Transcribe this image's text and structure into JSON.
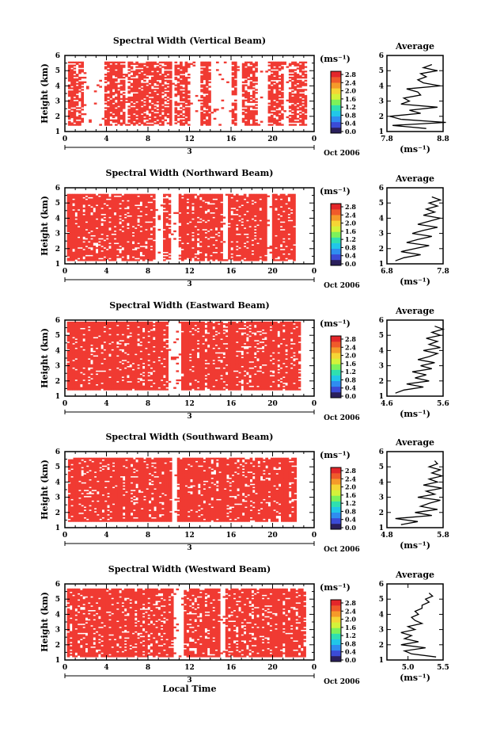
{
  "colors": {
    "data_red": "#f03a32",
    "colorbar": [
      "#2a1f5c",
      "#3b4bd6",
      "#2f8df0",
      "#21c7e8",
      "#2fe0b0",
      "#7cf25a",
      "#d4f23a",
      "#f5d535",
      "#f59a2a",
      "#f05a2a",
      "#e3262a"
    ]
  },
  "chart_data": [
    {
      "type": "heatmap",
      "title": "Spectral Width (Vertical Beam)",
      "xlabel": "",
      "ylabel": "Height (km)",
      "x_ticks": [
        "0",
        "4",
        "8",
        "12",
        "16",
        "20",
        "0"
      ],
      "x_sub_label": "3",
      "date_label": "Oct 2006",
      "xlim": [
        0,
        24
      ],
      "ylim": [
        1,
        6
      ],
      "y_ticks": [
        "1",
        "2",
        "3",
        "4",
        "5",
        "6"
      ],
      "data_range_hours": [
        0.3,
        23.2
      ],
      "data_height_range": [
        1.4,
        5.5
      ],
      "gaps_hours": [
        [
          1.7,
          3.8
        ],
        [
          5.6,
          6.0
        ],
        [
          10.2,
          10.5
        ],
        [
          12.0,
          13.0
        ],
        [
          14.0,
          16.0
        ],
        [
          16.5,
          17.0
        ],
        [
          18.5,
          19.5
        ],
        [
          21.0,
          21.5
        ]
      ],
      "fill_density": 0.72,
      "colorbar": {
        "unit": "(ms⁻¹)",
        "ticks": [
          "0.0",
          "0.4",
          "0.8",
          "1.2",
          "1.6",
          "2.0",
          "2.4",
          "2.8"
        ]
      },
      "average": {
        "title": "Average",
        "xlabel": "(ms⁻¹)",
        "x_ticks": [
          "7.8",
          "8.8"
        ],
        "xlim": [
          7.8,
          8.8
        ],
        "heights": [
          1.2,
          1.4,
          1.6,
          1.8,
          2.0,
          2.2,
          2.4,
          2.6,
          2.8,
          3.0,
          3.2,
          3.4,
          3.6,
          3.8,
          4.0,
          4.2,
          4.4,
          4.6,
          4.8,
          5.0,
          5.2,
          5.4
        ],
        "values": [
          8.5,
          7.9,
          8.85,
          8.05,
          7.85,
          8.4,
          8.2,
          8.7,
          8.05,
          8.2,
          8.1,
          8.4,
          8.35,
          8.15,
          8.75,
          8.45,
          8.35,
          8.5,
          8.4,
          8.7,
          8.45,
          8.6
        ]
      }
    },
    {
      "type": "heatmap",
      "title": "Spectral Width (Northward Beam)",
      "xlabel": "",
      "ylabel": "Height (km)",
      "x_ticks": [
        "0",
        "4",
        "8",
        "12",
        "16",
        "20",
        "0"
      ],
      "x_sub_label": "3",
      "date_label": "Oct 2006",
      "xlim": [
        0,
        24
      ],
      "ylim": [
        1,
        6
      ],
      "y_ticks": [
        "1",
        "2",
        "3",
        "4",
        "5",
        "6"
      ],
      "data_range_hours": [
        0.2,
        22.0
      ],
      "data_height_range": [
        1.2,
        5.5
      ],
      "gaps_hours": [
        [
          8.7,
          9.3
        ],
        [
          10.1,
          10.8
        ],
        [
          15.2,
          15.7
        ],
        [
          19.4,
          19.9
        ]
      ],
      "fill_density": 0.86,
      "colorbar": {
        "unit": "(ms⁻¹)",
        "ticks": [
          "0.0",
          "0.4",
          "0.8",
          "1.2",
          "1.6",
          "2.0",
          "2.4",
          "2.8"
        ]
      },
      "average": {
        "title": "Average",
        "xlabel": "(ms⁻¹)",
        "x_ticks": [
          "6.8",
          "7.8"
        ],
        "xlim": [
          6.8,
          7.8
        ],
        "heights": [
          1.2,
          1.4,
          1.6,
          1.8,
          2.0,
          2.2,
          2.4,
          2.6,
          2.8,
          3.0,
          3.2,
          3.4,
          3.6,
          3.8,
          4.0,
          4.2,
          4.4,
          4.6,
          4.8,
          5.0,
          5.2,
          5.4
        ],
        "values": [
          6.95,
          7.1,
          7.4,
          7.05,
          7.3,
          7.55,
          7.15,
          7.35,
          7.6,
          7.25,
          7.45,
          7.7,
          7.35,
          7.55,
          7.75,
          7.45,
          7.65,
          7.5,
          7.7,
          7.55,
          7.75,
          7.6
        ]
      }
    },
    {
      "type": "heatmap",
      "title": "Spectral Width (Eastward Beam)",
      "xlabel": "",
      "ylabel": "Height (km)",
      "x_ticks": [
        "0",
        "4",
        "8",
        "12",
        "16",
        "20",
        "0"
      ],
      "x_sub_label": "3",
      "date_label": "Oct 2006",
      "xlim": [
        0,
        24
      ],
      "ylim": [
        1,
        6
      ],
      "y_ticks": [
        "1",
        "2",
        "3",
        "4",
        "5",
        "6"
      ],
      "data_range_hours": [
        0.2,
        22.5
      ],
      "data_height_range": [
        1.4,
        5.8
      ],
      "gaps_hours": [
        [
          9.8,
          11.0
        ]
      ],
      "fill_density": 0.88,
      "colorbar": {
        "unit": "(ms⁻¹)",
        "ticks": [
          "0.0",
          "0.4",
          "0.8",
          "1.2",
          "1.6",
          "2.0",
          "2.4",
          "2.8"
        ]
      },
      "average": {
        "title": "Average",
        "xlabel": "(ms⁻¹)",
        "x_ticks": [
          "4.6",
          "5.6"
        ],
        "xlim": [
          4.6,
          5.6
        ],
        "heights": [
          1.2,
          1.4,
          1.6,
          1.8,
          2.0,
          2.2,
          2.4,
          2.6,
          2.8,
          3.0,
          3.2,
          3.4,
          3.6,
          3.8,
          4.0,
          4.2,
          4.4,
          4.6,
          4.8,
          5.0,
          5.2,
          5.4,
          5.6
        ],
        "values": [
          4.75,
          4.9,
          5.25,
          4.95,
          5.35,
          5.1,
          5.3,
          5.05,
          5.4,
          5.2,
          5.45,
          5.15,
          5.35,
          5.5,
          5.25,
          5.55,
          5.35,
          5.5,
          5.3,
          5.55,
          5.4,
          5.6,
          5.45
        ]
      }
    },
    {
      "type": "heatmap",
      "title": "Spectral Width (Southward Beam)",
      "xlabel": "",
      "ylabel": "Height (km)",
      "x_ticks": [
        "0",
        "4",
        "8",
        "12",
        "16",
        "20",
        "0"
      ],
      "x_sub_label": "3",
      "date_label": "Oct 2006",
      "xlim": [
        0,
        24
      ],
      "ylim": [
        1,
        6
      ],
      "y_ticks": [
        "1",
        "2",
        "3",
        "4",
        "5",
        "6"
      ],
      "data_range_hours": [
        0.3,
        22.2
      ],
      "data_height_range": [
        1.4,
        5.5
      ],
      "gaps_hours": [
        [
          10.1,
          10.8
        ]
      ],
      "fill_density": 0.87,
      "colorbar": {
        "unit": "(ms⁻¹)",
        "ticks": [
          "0.0",
          "0.4",
          "0.8",
          "1.2",
          "1.6",
          "2.0",
          "2.4",
          "2.8"
        ]
      },
      "average": {
        "title": "Average",
        "xlabel": "(ms⁻¹)",
        "x_ticks": [
          "4.8",
          "5.8"
        ],
        "xlim": [
          4.8,
          5.8
        ],
        "heights": [
          1.2,
          1.4,
          1.6,
          1.8,
          2.0,
          2.2,
          2.4,
          2.6,
          2.8,
          3.0,
          3.2,
          3.4,
          3.6,
          3.8,
          4.0,
          4.2,
          4.4,
          4.6,
          4.8,
          5.0,
          5.2,
          5.4
        ],
        "values": [
          5.05,
          5.35,
          4.95,
          5.6,
          5.3,
          5.7,
          5.4,
          5.55,
          5.75,
          5.35,
          5.65,
          5.5,
          5.78,
          5.45,
          5.7,
          5.55,
          5.78,
          5.6,
          5.75,
          5.55,
          5.7,
          5.65
        ]
      }
    },
    {
      "type": "heatmap",
      "title": "Spectral Width (Westward Beam)",
      "xlabel": "Local Time",
      "ylabel": "Height (km)",
      "x_ticks": [
        "0",
        "4",
        "8",
        "12",
        "16",
        "20",
        "0"
      ],
      "x_sub_label": "3",
      "date_label": "Oct 2006",
      "xlim": [
        0,
        24
      ],
      "ylim": [
        1,
        6
      ],
      "y_ticks": [
        "1",
        "2",
        "3",
        "4",
        "5",
        "6"
      ],
      "data_range_hours": [
        0.2,
        23.0
      ],
      "data_height_range": [
        1.2,
        5.6
      ],
      "gaps_hours": [
        [
          10.3,
          11.4
        ],
        [
          14.8,
          15.4
        ]
      ],
      "fill_density": 0.84,
      "colorbar": {
        "unit": "(ms⁻¹)",
        "ticks": [
          "0.0",
          "0.4",
          "0.8",
          "1.2",
          "1.6",
          "2.0",
          "2.4",
          "2.8"
        ]
      },
      "average": {
        "title": "Average",
        "xlabel": "(ms⁻¹)",
        "x_ticks": [
          "5.0",
          "5.5"
        ],
        "xlim": [
          4.7,
          5.5
        ],
        "heights": [
          1.2,
          1.4,
          1.6,
          1.8,
          2.0,
          2.2,
          2.4,
          2.6,
          2.8,
          3.0,
          3.2,
          3.4,
          3.6,
          3.8,
          4.0,
          4.2,
          4.4,
          4.6,
          4.8,
          5.0,
          5.2,
          5.4
        ],
        "values": [
          5.4,
          5.05,
          4.95,
          5.25,
          4.9,
          5.15,
          4.95,
          5.05,
          4.9,
          5.1,
          5.0,
          5.2,
          5.1,
          5.05,
          5.15,
          5.1,
          5.2,
          5.2,
          5.3,
          5.25,
          5.35,
          5.3
        ]
      }
    }
  ]
}
